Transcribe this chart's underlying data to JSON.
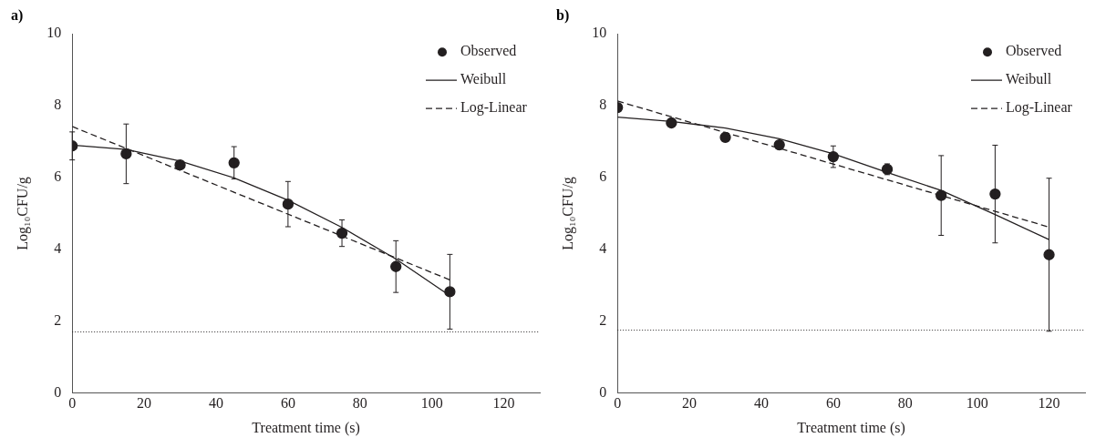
{
  "chart_data": [
    {
      "type": "scatter",
      "title": "a)",
      "xlabel": "Treatment time (s)",
      "ylabel": "Log₁₀CFU/g",
      "xlim": [
        0,
        130
      ],
      "ylim": [
        0,
        10
      ],
      "xticks": [
        0,
        20,
        40,
        60,
        80,
        100,
        120
      ],
      "yticks": [
        0,
        2,
        4,
        6,
        8,
        10
      ],
      "legend": "top right",
      "ref_lines": [
        {
          "axis": "y",
          "value": 1.7,
          "line_style": "dotted"
        }
      ],
      "series": [
        {
          "name": "Observed",
          "type": "scatter",
          "marker": "circle",
          "color": "#231f20",
          "x": [
            0,
            15,
            30,
            45,
            60,
            75,
            90,
            105
          ],
          "values": [
            6.88,
            6.66,
            6.35,
            6.41,
            5.26,
            4.45,
            3.52,
            2.82
          ],
          "errors": [
            0.39,
            0.83,
            null,
            0.45,
            0.63,
            0.37,
            0.72,
            1.04
          ]
        },
        {
          "name": "Weibull",
          "type": "line",
          "marker": "none",
          "line_style": "solid",
          "color": "#231f20",
          "x": [
            0,
            15,
            30,
            45,
            60,
            75,
            90,
            105
          ],
          "values": [
            6.9,
            6.78,
            6.46,
            5.99,
            5.37,
            4.61,
            3.73,
            2.71
          ]
        },
        {
          "name": "Log-Linear",
          "type": "line",
          "marker": "none",
          "line_style": "dashed",
          "color": "#231f20",
          "x": [
            0,
            105
          ],
          "values": [
            7.42,
            3.15
          ]
        }
      ]
    },
    {
      "type": "scatter",
      "title": "b)",
      "xlabel": "Treatment time (s)",
      "ylabel": "Log₁₀CFU/g",
      "xlim": [
        0,
        130
      ],
      "ylim": [
        0,
        10
      ],
      "xticks": [
        0,
        20,
        40,
        60,
        80,
        100,
        120
      ],
      "yticks": [
        0,
        2,
        4,
        6,
        8,
        10
      ],
      "legend": "top right",
      "ref_lines": [
        {
          "axis": "y",
          "value": 1.75,
          "line_style": "dotted"
        }
      ],
      "series": [
        {
          "name": "Observed",
          "type": "scatter",
          "marker": "circle",
          "color": "#231f20",
          "x": [
            0,
            15,
            30,
            45,
            60,
            75,
            90,
            105,
            120
          ],
          "values": [
            7.95,
            7.52,
            7.12,
            6.91,
            6.58,
            6.23,
            5.5,
            5.54,
            3.85
          ],
          "errors": [
            null,
            null,
            0.12,
            null,
            0.3,
            0.15,
            1.11,
            1.36,
            2.13
          ]
        },
        {
          "name": "Weibull",
          "type": "line",
          "marker": "none",
          "line_style": "solid",
          "color": "#231f20",
          "x": [
            0,
            15,
            30,
            45,
            60,
            75,
            90,
            105,
            120
          ],
          "values": [
            7.68,
            7.56,
            7.38,
            7.08,
            6.66,
            6.14,
            5.64,
            4.97,
            4.27
          ]
        },
        {
          "name": "Log-Linear",
          "type": "line",
          "marker": "none",
          "line_style": "dashed",
          "color": "#231f20",
          "x": [
            0,
            120
          ],
          "values": [
            8.13,
            4.62
          ]
        }
      ]
    }
  ]
}
